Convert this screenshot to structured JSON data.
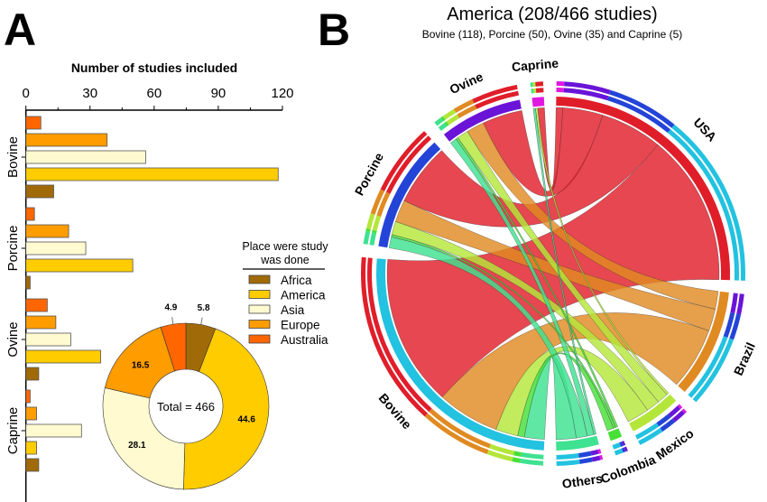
{
  "panels": {
    "a": "A",
    "b": "B"
  },
  "chart_data": [
    {
      "type": "bar",
      "orientation": "horizontal",
      "title": "Number of studies included",
      "xlabel": "Number of studies included",
      "xlim": [
        0,
        120
      ],
      "xticks": [
        "0",
        "30",
        "60",
        "90",
        "120"
      ],
      "categories": [
        "Bovine",
        "Porcine",
        "Ovine",
        "Caprine"
      ],
      "series": [
        {
          "name": "Australia",
          "color": "#ff6600",
          "values": [
            7,
            4,
            10,
            2
          ]
        },
        {
          "name": "Europe",
          "color": "#ff9c00",
          "values": [
            38,
            20,
            14,
            5
          ]
        },
        {
          "name": "Asia",
          "color": "#fffad0",
          "values": [
            56,
            28,
            21,
            26
          ]
        },
        {
          "name": "America",
          "color": "#ffcc00",
          "values": [
            118,
            50,
            35,
            5
          ]
        },
        {
          "name": "Africa",
          "color": "#a06a08",
          "values": [
            13,
            2,
            6,
            6
          ]
        }
      ],
      "legend": {
        "title_line1": "Place were study",
        "title_line2": "was done",
        "placement": "right",
        "entries": [
          {
            "label": "Africa",
            "color": "#a06a08"
          },
          {
            "label": "America",
            "color": "#ffcc00"
          },
          {
            "label": "Asia",
            "color": "#fffad0"
          },
          {
            "label": "Europe",
            "color": "#ff9c00"
          },
          {
            "label": "Australia",
            "color": "#ff6600"
          }
        ]
      }
    },
    {
      "type": "pie",
      "style": "donut",
      "center_label": "Total = 466",
      "slices": [
        {
          "label": "Africa",
          "value": 5.8,
          "text": "5.8",
          "color": "#a06a08"
        },
        {
          "label": "America",
          "value": 44.6,
          "text": "44.6",
          "color": "#ffcc00"
        },
        {
          "label": "Asia",
          "value": 28.1,
          "text": "28.1",
          "color": "#fffad0"
        },
        {
          "label": "Europe",
          "value": 16.5,
          "text": "16.5",
          "color": "#ff9c00"
        },
        {
          "label": "Australia",
          "value": 4.9,
          "text": "4.9",
          "color": "#ff6600"
        }
      ]
    },
    {
      "type": "chord",
      "title": "America (208/466 studies)",
      "subtitle": "Bovine (118), Porcine (50), Ovine (35) and Caprine (5)",
      "countries": [
        {
          "name": "USA",
          "color": "#e01e2a"
        },
        {
          "name": "Brazil",
          "color": "#e08a22"
        },
        {
          "name": "Mexico",
          "color": "#b4e63a"
        },
        {
          "name": "Colombia",
          "color": "#46e038"
        },
        {
          "name": "Others",
          "color": "#3ee290"
        }
      ],
      "species": [
        {
          "name": "Bovine",
          "color": "#22c2e0"
        },
        {
          "name": "Porcine",
          "color": "#2444d8"
        },
        {
          "name": "Ovine",
          "color": "#6a14d8"
        },
        {
          "name": "Caprine",
          "color": "#e018e0"
        }
      ],
      "matrix_species_by_country": [
        [
          68,
          28,
          10,
          3,
          9
        ],
        [
          28,
          10,
          6,
          1,
          5
        ],
        [
          18,
          8,
          5,
          1,
          3
        ],
        [
          3,
          0,
          1,
          0,
          1
        ]
      ]
    }
  ]
}
